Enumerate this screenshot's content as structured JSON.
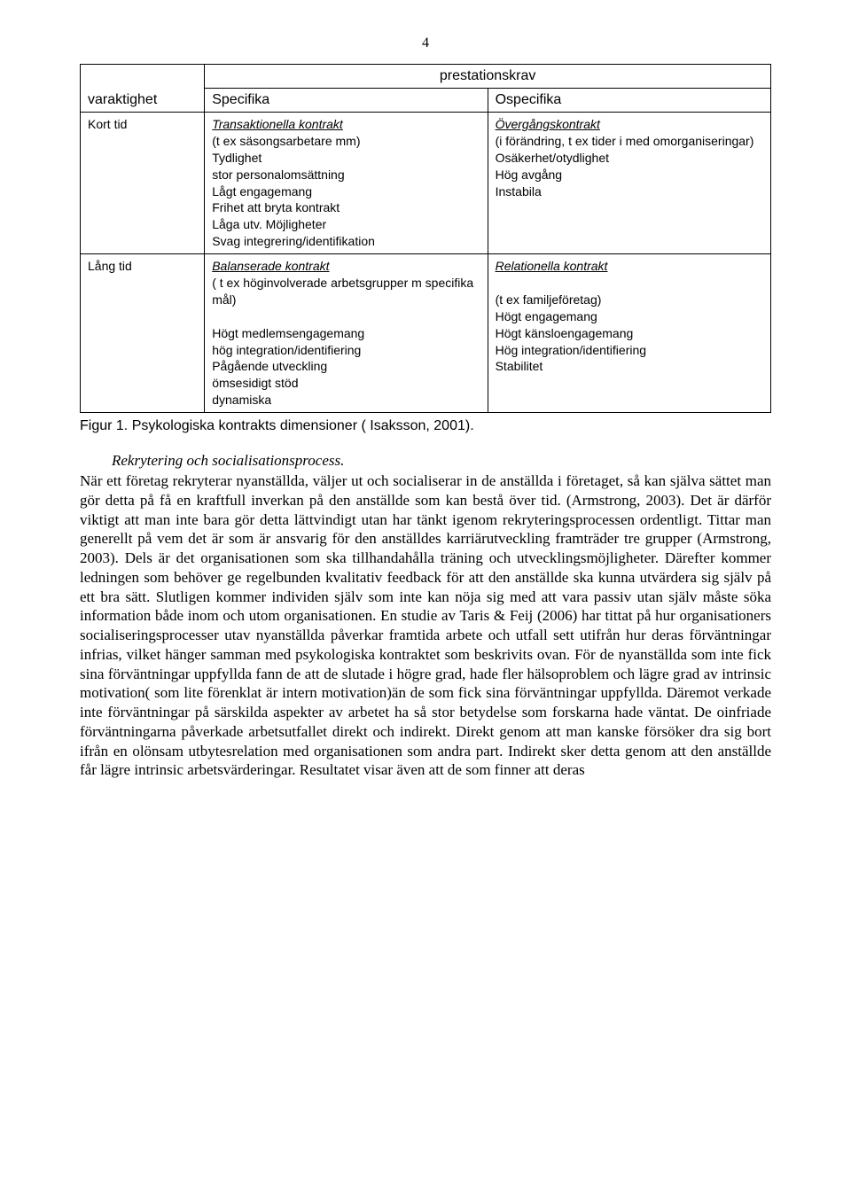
{
  "page_number": "4",
  "table": {
    "header": {
      "top_row_col1": "",
      "top_row_merged": "prestationskrav",
      "sub_col1": "varaktighet",
      "sub_col2": "Specifika",
      "sub_col3": "Ospecifika"
    },
    "rows": [
      {
        "left": "Kort tid",
        "mid_title": "Transaktionella kontrakt",
        "mid_lines": [
          "(t ex säsongsarbetare mm)",
          "Tydlighet",
          "stor personalomsättning",
          "Lågt engagemang",
          "Frihet att bryta kontrakt",
          "Låga utv. Möjligheter",
          "Svag integrering/identifikation"
        ],
        "right_title": "Övergångskontrakt",
        "right_lines": [
          "(i förändring, t ex tider i med omorganiseringar)",
          "Osäkerhet/otydlighet",
          "Hög avgång",
          "Instabila"
        ]
      },
      {
        "left": "Lång tid",
        "mid_title": "Balanserade kontrakt",
        "mid_lines": [
          "( t ex höginvolverade arbetsgrupper m specifika mål)",
          "",
          "Högt medlemsengagemang",
          "hög integration/identifiering",
          "Pågående utveckling",
          "ömsesidigt stöd",
          "dynamiska"
        ],
        "right_title": "Relationella kontrakt",
        "right_lines": [
          "",
          "(t ex familjeföretag)",
          "Högt engagemang",
          "Högt känsloengagemang",
          "Hög integration/identifiering",
          "Stabilitet"
        ]
      }
    ]
  },
  "figure_caption": "Figur 1. Psykologiska kontrakts dimensioner ( Isaksson, 2001).",
  "subheading": "Rekrytering och socialisationsprocess.",
  "body_text": "När ett företag rekryterar nyanställda, väljer ut och socialiserar in de anställda i företaget, så kan själva sättet man gör detta på få en kraftfull inverkan på den anställde som kan bestå över tid. (Armstrong, 2003). Det är därför viktigt att man inte bara gör detta lättvindigt utan har tänkt igenom rekryteringsprocessen ordentligt. Tittar man generellt på vem det är som är ansvarig för den anställdes karriärutveckling framträder tre grupper (Armstrong, 2003). Dels är det organisationen som ska tillhandahålla träning och utvecklingsmöjligheter. Därefter kommer ledningen som behöver ge regelbunden kvalitativ feedback för att den anställde ska kunna utvärdera sig själv på ett bra sätt. Slutligen kommer individen själv som inte kan nöja sig med att vara passiv utan själv måste söka information både inom och utom organisationen. En studie av Taris & Feij (2006) har tittat på hur organisationers socialiseringsprocesser utav nyanställda påverkar framtida arbete och utfall sett utifrån hur deras förväntningar infrias, vilket hänger samman med psykologiska kontraktet som beskrivits ovan. För de nyanställda som inte fick sina förväntningar uppfyllda fann de att de slutade i högre grad, hade fler hälsoproblem och lägre grad av intrinsic motivation( som lite förenklat är intern motivation)än de som fick sina förväntningar uppfyllda. Däremot verkade inte förväntningar på särskilda aspekter av arbetet ha så stor betydelse som forskarna hade väntat. De oinfriade förväntningarna påverkade arbetsutfallet direkt och indirekt. Direkt genom att man kanske försöker dra sig bort ifrån en olönsam utbytesrelation med organisationen som andra part. Indirekt sker detta genom att den anställde får lägre intrinsic arbetsvärderingar. Resultatet visar även att de som finner att deras"
}
